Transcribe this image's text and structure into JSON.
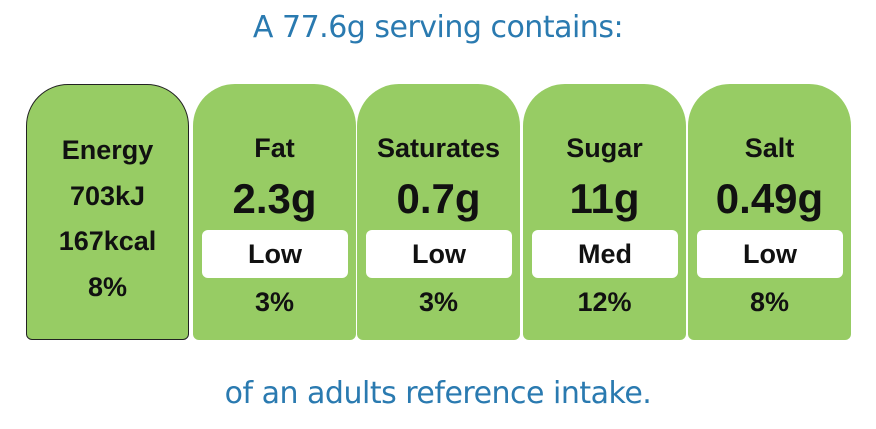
{
  "header": {
    "text": "A 77.6g serving contains:"
  },
  "energy": {
    "label": "Energy",
    "kj": "703kJ",
    "kcal": "167kcal",
    "percent": "8%"
  },
  "nutrients": [
    {
      "name": "Fat",
      "amount": "2.3g",
      "level": "Low",
      "percent": "3%"
    },
    {
      "name": "Saturates",
      "amount": "0.7g",
      "level": "Low",
      "percent": "3%"
    },
    {
      "name": "Sugar",
      "amount": "11g",
      "level": "Med",
      "percent": "12%"
    },
    {
      "name": "Salt",
      "amount": "0.49g",
      "level": "Low",
      "percent": "8%"
    }
  ],
  "footer": {
    "text": "of an adults reference intake."
  },
  "colors": {
    "panel_green": "#97cc64",
    "heading_blue": "#2a7ab0",
    "level_box": "#ffffff"
  }
}
